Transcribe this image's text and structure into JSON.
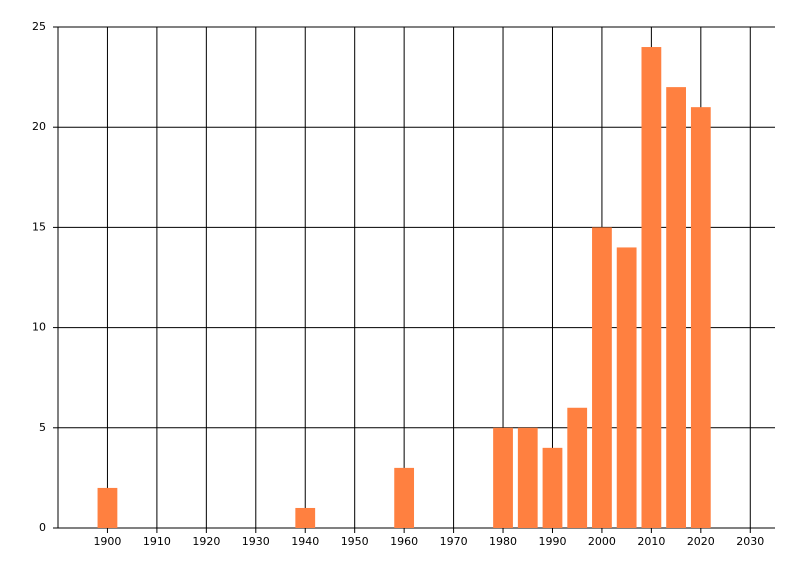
{
  "chart_data": {
    "type": "bar",
    "x": [
      1900,
      1940,
      1960,
      1980,
      1985,
      1990,
      1995,
      2000,
      2005,
      2010,
      2015,
      2020
    ],
    "values": [
      2,
      1,
      3,
      5,
      5,
      4,
      6,
      15,
      14,
      24,
      22,
      21
    ],
    "color": "#ff8040",
    "xlim": [
      1890,
      2035
    ],
    "xticks": [
      1900,
      1910,
      1920,
      1930,
      1940,
      1950,
      1960,
      1970,
      1980,
      1990,
      2000,
      2010,
      2020,
      2030
    ],
    "ylim": [
      0,
      25
    ],
    "yticks": [
      0,
      5,
      10,
      15,
      20,
      25
    ],
    "grid": true
  }
}
